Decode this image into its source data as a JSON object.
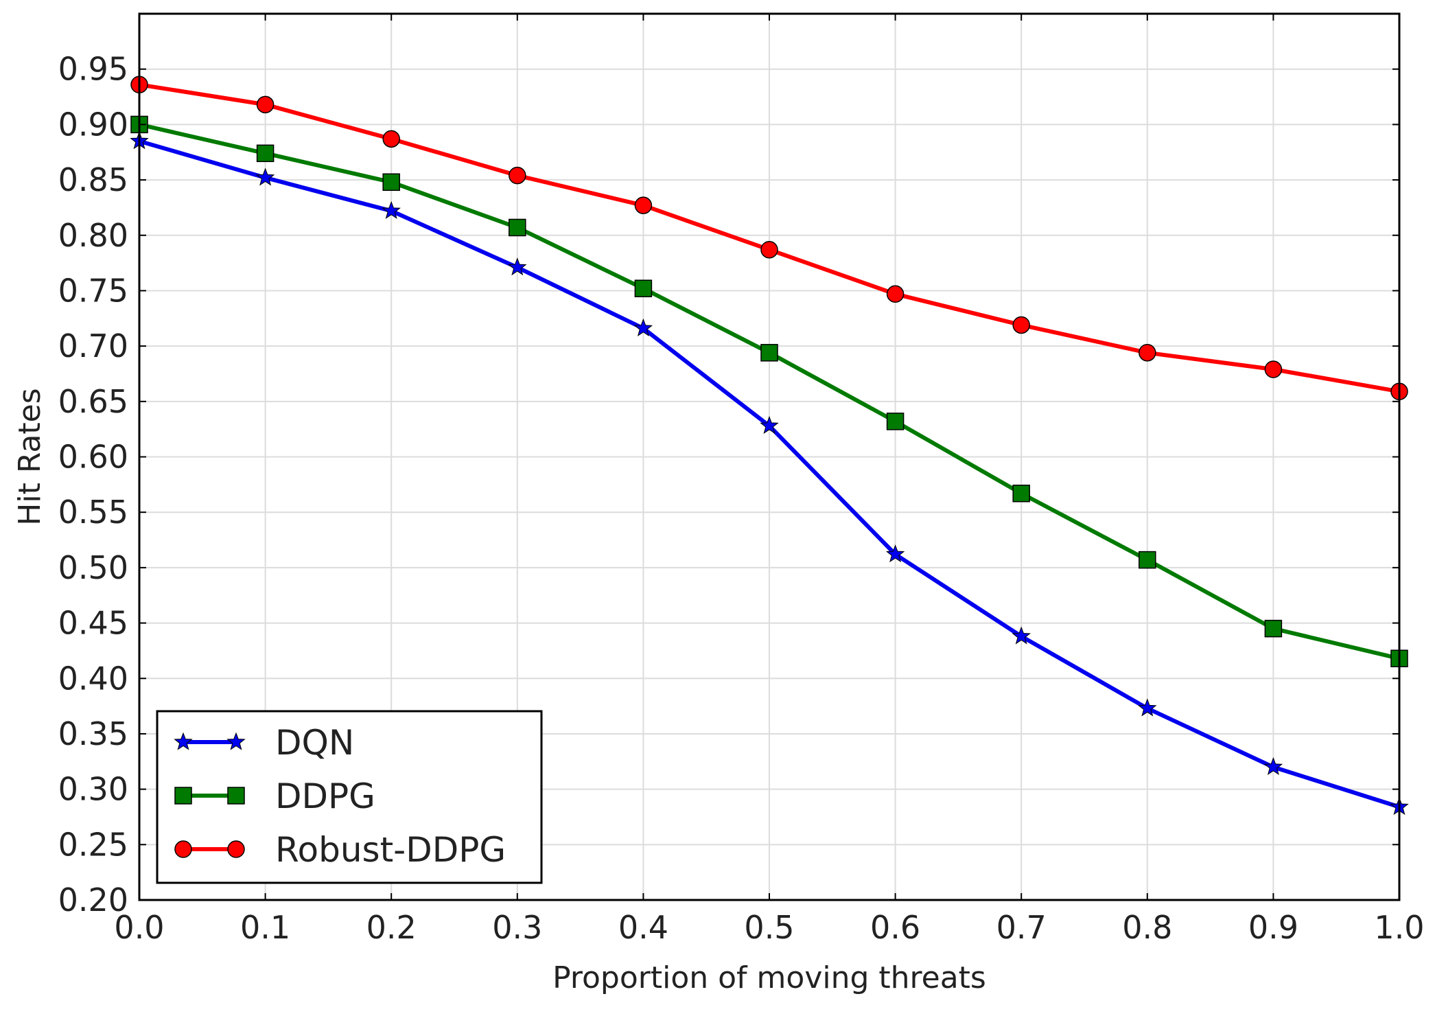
{
  "chart_data": {
    "type": "line",
    "title": "",
    "xlabel": "Proportion of moving threats",
    "ylabel": "Hit Rates",
    "xlim": [
      0.0,
      1.0
    ],
    "ylim": [
      0.2,
      1.0
    ],
    "grid": true,
    "legend_position": "bottom-left",
    "x": [
      0.0,
      0.1,
      0.2,
      0.3,
      0.4,
      0.5,
      0.6,
      0.7,
      0.8,
      0.9,
      1.0
    ],
    "x_tick_labels": [
      "0.0",
      "0.1",
      "0.2",
      "0.3",
      "0.4",
      "0.5",
      "0.6",
      "0.7",
      "0.8",
      "0.9",
      "1.0"
    ],
    "y_ticks": [
      0.2,
      0.25,
      0.3,
      0.35,
      0.4,
      0.45,
      0.5,
      0.55,
      0.6,
      0.65,
      0.7,
      0.75,
      0.8,
      0.85,
      0.9,
      0.95
    ],
    "y_tick_labels": [
      "0.20",
      "0.25",
      "0.30",
      "0.35",
      "0.40",
      "0.45",
      "0.50",
      "0.55",
      "0.60",
      "0.65",
      "0.70",
      "0.75",
      "0.80",
      "0.85",
      "0.90",
      "0.95"
    ],
    "series": [
      {
        "name": "DQN",
        "color": "#0000ee",
        "marker": "star",
        "values": [
          0.885,
          0.852,
          0.822,
          0.771,
          0.716,
          0.628,
          0.512,
          0.438,
          0.373,
          0.32,
          0.284
        ]
      },
      {
        "name": "DDPG",
        "color": "#007a00",
        "marker": "square",
        "values": [
          0.9,
          0.874,
          0.848,
          0.807,
          0.752,
          0.694,
          0.632,
          0.567,
          0.507,
          0.445,
          0.418
        ]
      },
      {
        "name": "Robust-DDPG",
        "color": "#ff0000",
        "marker": "circle",
        "values": [
          0.936,
          0.918,
          0.887,
          0.854,
          0.827,
          0.787,
          0.747,
          0.719,
          0.694,
          0.679,
          0.659
        ]
      }
    ]
  }
}
